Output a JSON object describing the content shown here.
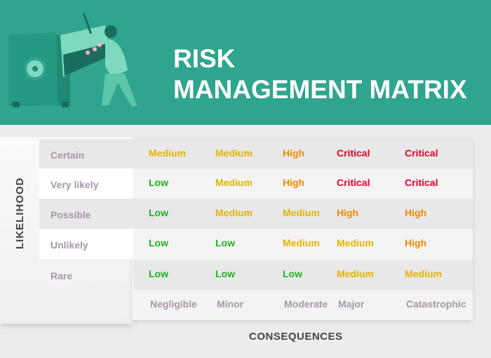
{
  "header": {
    "title_line1": "RISK",
    "title_line2": "MANAGEMENT MATRIX",
    "bg": "#2fa58f",
    "illustration": "person-opening-safe-illustration"
  },
  "axis": {
    "y_label": "LIKELIHOOD",
    "x_label": "CONSEQUENCES"
  },
  "colors": {
    "Low": "#1cb51c",
    "Medium": "#e5b400",
    "High": "#f08a00",
    "Critical": "#e8002a"
  },
  "rows": [
    {
      "label": "Certain",
      "cells": [
        "Medium",
        "Medium",
        "High",
        "Critical",
        "Critical"
      ]
    },
    {
      "label": "Very likely",
      "cells": [
        "Low",
        "Medium",
        "High",
        "Critical",
        "Critical"
      ]
    },
    {
      "label": "Possible",
      "cells": [
        "Low",
        "Medium",
        "Medium",
        "High",
        "High"
      ]
    },
    {
      "label": "Unlikely",
      "cells": [
        "Low",
        "Low",
        "Medium",
        "Medium",
        "High"
      ]
    },
    {
      "label": "Rare",
      "cells": [
        "Low",
        "Low",
        "Low",
        "Medium",
        "Medium"
      ]
    }
  ],
  "columns": [
    "Negligible",
    "Minor",
    "Moderate",
    "Major",
    "Catastrophic"
  ]
}
